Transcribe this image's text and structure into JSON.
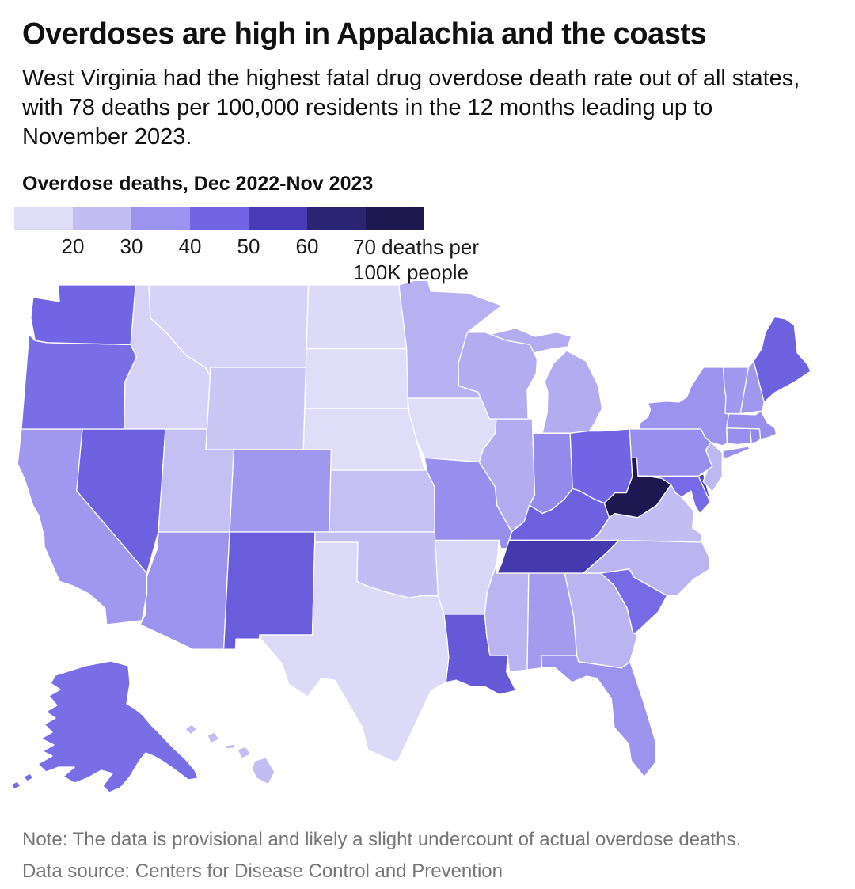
{
  "header": {
    "title": "Overdoses are high in Appalachia and the coasts",
    "subtitle": "West Virginia had the highest fatal drug overdose death rate out of all states, with 78 deaths per 100,000 residents in the 12 months leading up to November 2023."
  },
  "legend": {
    "title": "Overdose deaths, Dec 2022-Nov 2023",
    "bucket_colors": [
      "#dfddf8",
      "#c2bdf2",
      "#9c93ee",
      "#7265e5",
      "#473cb5",
      "#2a2472",
      "#1d1850"
    ],
    "ticks": [
      "20",
      "30",
      "40",
      "50",
      "60"
    ],
    "last_tick_line1": "70 deaths per",
    "last_tick_line2": "100K people"
  },
  "chart_data": {
    "type": "choropleth",
    "title": "Overdose deaths, Dec 2022-Nov 2023",
    "geography": "United States",
    "unit": "deaths per 100K people",
    "legend_breaks": [
      20,
      30,
      40,
      50,
      60,
      70
    ],
    "color_scale": {
      "anchor_values": [
        15,
        25,
        35,
        45,
        55,
        65,
        75
      ],
      "anchor_colors": [
        "#dfddf8",
        "#c2bdf2",
        "#9c93ee",
        "#7265e5",
        "#473cb5",
        "#2a2472",
        "#1d1850"
      ]
    },
    "max_state": {
      "name": "West Virginia",
      "value": 78
    },
    "states": [
      {
        "code": "AL",
        "name": "Alabama",
        "value": 33
      },
      {
        "code": "AK",
        "name": "Alaska",
        "value": 43
      },
      {
        "code": "AZ",
        "name": "Arizona",
        "value": 35
      },
      {
        "code": "AR",
        "name": "Arkansas",
        "value": 17
      },
      {
        "code": "CA",
        "name": "California",
        "value": 34
      },
      {
        "code": "CO",
        "name": "Colorado",
        "value": 34
      },
      {
        "code": "CT",
        "name": "Connecticut",
        "value": 36
      },
      {
        "code": "DE",
        "name": "Delaware",
        "value": 53
      },
      {
        "code": "FL",
        "name": "Florida",
        "value": 35
      },
      {
        "code": "GA",
        "name": "Georgia",
        "value": 27
      },
      {
        "code": "HI",
        "name": "Hawaii",
        "value": 25
      },
      {
        "code": "ID",
        "name": "Idaho",
        "value": 18
      },
      {
        "code": "IL",
        "name": "Illinois",
        "value": 29
      },
      {
        "code": "IN",
        "name": "Indiana",
        "value": 37
      },
      {
        "code": "IA",
        "name": "Iowa",
        "value": 15
      },
      {
        "code": "KS",
        "name": "Kansas",
        "value": 24
      },
      {
        "code": "KY",
        "name": "Kentucky",
        "value": 46
      },
      {
        "code": "LA",
        "name": "Louisiana",
        "value": 48
      },
      {
        "code": "ME",
        "name": "Maine",
        "value": 46
      },
      {
        "code": "MD",
        "name": "Maryland",
        "value": 44
      },
      {
        "code": "MA",
        "name": "Massachusetts",
        "value": 36
      },
      {
        "code": "MI",
        "name": "Michigan",
        "value": 29
      },
      {
        "code": "MN",
        "name": "Minnesota",
        "value": 28
      },
      {
        "code": "MS",
        "name": "Mississippi",
        "value": 27
      },
      {
        "code": "MO",
        "name": "Missouri",
        "value": 36
      },
      {
        "code": "MT",
        "name": "Montana",
        "value": 18
      },
      {
        "code": "NE",
        "name": "Nebraska",
        "value": 13
      },
      {
        "code": "NV",
        "name": "Nevada",
        "value": 46
      },
      {
        "code": "NH",
        "name": "New Hampshire",
        "value": 34
      },
      {
        "code": "NJ",
        "name": "New Jersey",
        "value": 26
      },
      {
        "code": "NM",
        "name": "New Mexico",
        "value": 47
      },
      {
        "code": "NY",
        "name": "New York",
        "value": 35
      },
      {
        "code": "NC",
        "name": "North Carolina",
        "value": 27
      },
      {
        "code": "ND",
        "name": "North Dakota",
        "value": 16
      },
      {
        "code": "OH",
        "name": "Ohio",
        "value": 45
      },
      {
        "code": "OK",
        "name": "Oklahoma",
        "value": 25
      },
      {
        "code": "OR",
        "name": "Oregon",
        "value": 43
      },
      {
        "code": "PA",
        "name": "Pennsylvania",
        "value": 36
      },
      {
        "code": "RI",
        "name": "Rhode Island",
        "value": 37
      },
      {
        "code": "SC",
        "name": "South Carolina",
        "value": 44
      },
      {
        "code": "SD",
        "name": "South Dakota",
        "value": 14
      },
      {
        "code": "TN",
        "name": "Tennessee",
        "value": 56
      },
      {
        "code": "TX",
        "name": "Texas",
        "value": 16
      },
      {
        "code": "UT",
        "name": "Utah",
        "value": 24
      },
      {
        "code": "VT",
        "name": "Vermont",
        "value": 34
      },
      {
        "code": "VA",
        "name": "Virginia",
        "value": 25
      },
      {
        "code": "WA",
        "name": "Washington",
        "value": 45
      },
      {
        "code": "WV",
        "name": "West Virginia",
        "value": 78
      },
      {
        "code": "WI",
        "name": "Wisconsin",
        "value": 29
      },
      {
        "code": "WY",
        "name": "Wyoming",
        "value": 22
      }
    ]
  },
  "footer": {
    "note": "Note: The data is provisional and likely a slight undercount of actual overdose deaths.",
    "source": "Data source: Centers for Disease Control and Prevention"
  }
}
